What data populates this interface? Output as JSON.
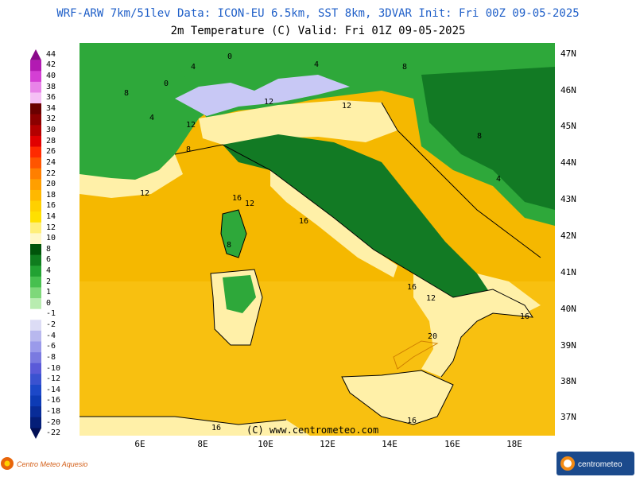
{
  "header": {
    "line1": "WRF-ARW 7km/51lev  Data: ICON-EU 6.5km, SST 8km, 3DVAR  Init: Fri 00Z 09-05-2025",
    "line2": "2m Temperature (C)  Valid: Fri 01Z 09-05-2025"
  },
  "legend": {
    "labels": [
      "44",
      "42",
      "40",
      "38",
      "36",
      "34",
      "32",
      "30",
      "28",
      "26",
      "24",
      "22",
      "20",
      "18",
      "16",
      "14",
      "12",
      "10",
      "8",
      "6",
      "4",
      "2",
      "1",
      "0",
      "-1",
      "-2",
      "-4",
      "-6",
      "-8",
      "-10",
      "-12",
      "-14",
      "-16",
      "-18",
      "-20",
      "-22"
    ],
    "colors": [
      "#8a0a8a",
      "#b21ab2",
      "#d43fd4",
      "#e884e8",
      "#f5c0f5",
      "#6a0000",
      "#8c0000",
      "#b40000",
      "#e10000",
      "#ff2a00",
      "#ff5500",
      "#ff7f00",
      "#ff9f00",
      "#ffb800",
      "#ffd000",
      "#ffe000",
      "#ffef7a",
      "#fff8c8",
      "#00540a",
      "#0f7d1e",
      "#22a232",
      "#47c04f",
      "#7ed87a",
      "#b8ecb0",
      "#ffffff",
      "#dcdcf5",
      "#b8b8ee",
      "#9a9aea",
      "#7a7ae0",
      "#5a5ad8",
      "#3a52d0",
      "#1c48c8",
      "#0d3bb5",
      "#082c98",
      "#041e78",
      "#020f55"
    ]
  },
  "axes": {
    "lat_labels": [
      "47N",
      "46N",
      "45N",
      "44N",
      "43N",
      "42N",
      "41N",
      "40N",
      "39N",
      "38N",
      "37N"
    ],
    "lon_labels": [
      "6E",
      "8E",
      "10E",
      "12E",
      "14E",
      "16E",
      "18E"
    ]
  },
  "contour_labels": [
    "0",
    "4",
    "8",
    "12",
    "16",
    "20"
  ],
  "colors": {
    "sea": "#f5b800",
    "land_warm": "#fff0a8",
    "forest": "#127a24",
    "mountains": "#2ea83a",
    "alps_cold": "#c8c8f5"
  },
  "copyright": "(C) www.centrometeo.com",
  "logos": {
    "left": "Centro Meteo Aquesio",
    "right": "centrometeo"
  }
}
